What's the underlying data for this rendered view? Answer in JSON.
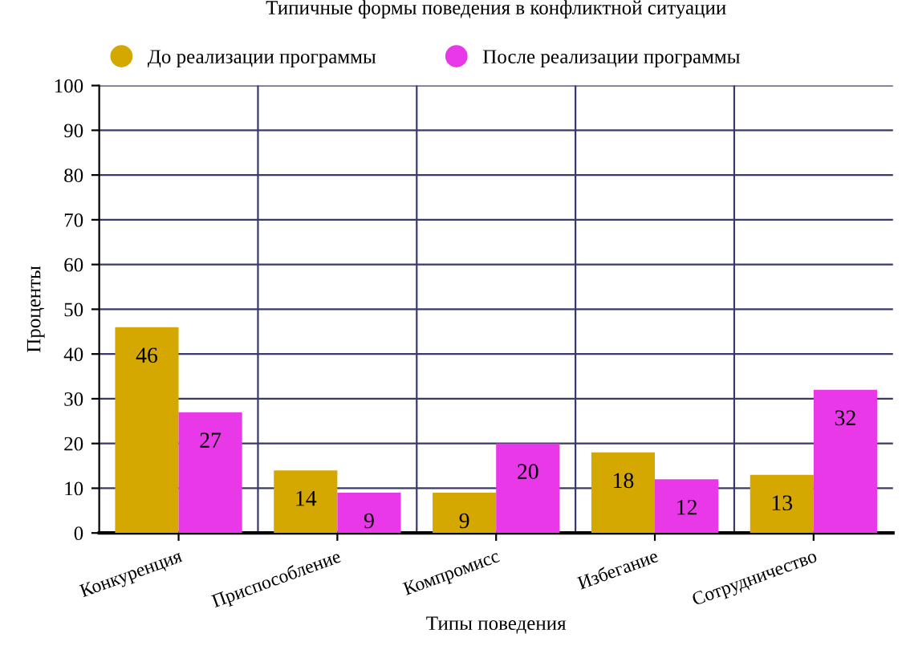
{
  "chart_data": {
    "type": "bar",
    "title": "Типичные формы поведения в конфликтной ситуации",
    "xlabel": "Типы поведения",
    "ylabel": "Проценты",
    "categories": [
      "Конкуренция",
      "Приспособление",
      "Компромисс",
      "Избегание",
      "Сотрудничество"
    ],
    "series": [
      {
        "name": "До реализации программы",
        "color": "#d4a800",
        "values": [
          46,
          14,
          9,
          18,
          13
        ]
      },
      {
        "name": "После реализации программы",
        "color": "#e838e8",
        "values": [
          27,
          9,
          20,
          12,
          32
        ]
      }
    ],
    "ylim": [
      0,
      100
    ],
    "yticks": [
      0,
      10,
      20,
      30,
      40,
      50,
      60,
      70,
      80,
      90,
      100
    ],
    "grid": true,
    "legend": "top left",
    "data_labels": true
  }
}
